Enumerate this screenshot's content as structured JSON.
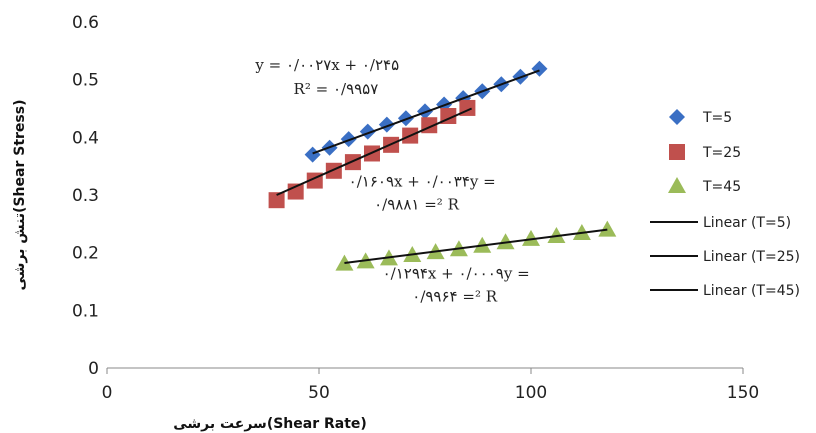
{
  "chart_data": {
    "type": "scatter",
    "xlabel": "سرعت برشی(Shear Rate)",
    "ylabel": "تنش برشی(Shear Stress)",
    "xlim": [
      0,
      150
    ],
    "ylim": [
      0,
      0.6
    ],
    "xticks": [
      "0",
      "50",
      "100",
      "150"
    ],
    "yticks": [
      "0",
      "0.1",
      "0.2",
      "0.3",
      "0.4",
      "0.5",
      "0.6"
    ],
    "grid": false,
    "legend_position": "right",
    "series": [
      {
        "name": "T=5",
        "marker": "diamond",
        "color": "#3a6fc4",
        "x": [
          48.5,
          52.5,
          57,
          61.5,
          66,
          70.5,
          75,
          79.5,
          84,
          88.5,
          93,
          97.5,
          102
        ],
        "y": [
          0.37,
          0.382,
          0.397,
          0.41,
          0.422,
          0.433,
          0.445,
          0.457,
          0.468,
          0.48,
          0.492,
          0.505,
          0.519
        ]
      },
      {
        "name": "T=25",
        "marker": "square",
        "color": "#c0504d",
        "x": [
          40,
          44.5,
          49,
          53.5,
          58,
          62.5,
          67,
          71.5,
          76,
          80.5,
          85
        ],
        "y": [
          0.291,
          0.306,
          0.325,
          0.342,
          0.357,
          0.372,
          0.387,
          0.403,
          0.421,
          0.437,
          0.451
        ]
      },
      {
        "name": "T=45",
        "marker": "triangle",
        "color": "#9bbb59",
        "x": [
          56,
          61,
          66.5,
          72,
          77.5,
          83,
          88.5,
          94,
          100,
          106,
          112,
          118
        ],
        "y": [
          0.181,
          0.185,
          0.19,
          0.196,
          0.201,
          0.206,
          0.212,
          0.218,
          0.224,
          0.229,
          0.234,
          0.24
        ]
      }
    ],
    "trendlines": [
      {
        "name": "Linear (T=5)",
        "color": "#111111",
        "x": [
          48.5,
          102
        ],
        "y": [
          0.372,
          0.516
        ]
      },
      {
        "name": "Linear (T=25)",
        "color": "#111111",
        "x": [
          40,
          86
        ],
        "y": [
          0.3,
          0.45
        ]
      },
      {
        "name": "Linear (T=45)",
        "color": "#111111",
        "x": [
          56,
          118
        ],
        "y": [
          0.182,
          0.24
        ]
      }
    ],
    "annotations": [
      {
        "text": "y = ۰/۰۰۲۷x + ۰/۲۴۵",
        "x": 35,
        "y": 0.517
      },
      {
        "text": "R² = ۰/۹۹۵۷",
        "x": 44,
        "y": 0.475
      },
      {
        "text": "۰/۱۶۰۹x + ۰/۰۰۳۴y =",
        "x": 57,
        "y": 0.315
      },
      {
        "text": "۰/۹۸۸۱ =² R",
        "x": 63,
        "y": 0.275
      },
      {
        "text": "۰/۱۲۹۴x + ۰/۰۰۰۹y =",
        "x": 65,
        "y": 0.155
      },
      {
        "text": "۰/۹۹۶۴ =² R",
        "x": 72,
        "y": 0.115
      }
    ]
  }
}
